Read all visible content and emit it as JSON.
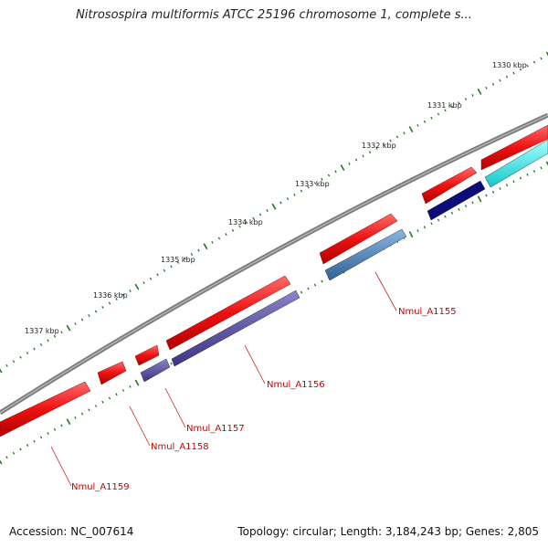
{
  "header": {
    "title": "Nitrosospira multiformis ATCC 25196 chromosome 1, complete s..."
  },
  "scale": {
    "ticks": [
      "1330 kbp",
      "1331 kbp",
      "1332 kbp",
      "1333 kbp",
      "1334 kbp",
      "1335 kbp",
      "1336 kbp",
      "1337 kbp"
    ]
  },
  "features": {
    "gene_labels": [
      "Nmul_A1155",
      "Nmul_A1156",
      "Nmul_A1157",
      "Nmul_A1158",
      "Nmul_A1159"
    ]
  },
  "colors": {
    "backbone": "#7d7d7d",
    "forward_cds": "#ee1111",
    "reverse_cds_dark": "#0d0d7a",
    "reverse_cds_steel": "#4a7fb5",
    "reverse_cds_slate": "#4e4796",
    "reverse_cds_cyan": "#22dddd",
    "tick": "#1e7a1e",
    "label": "#cc0000"
  },
  "footer": {
    "accession": "Accession: NC_007614",
    "stats": "Topology: circular; Length: 3,184,243 bp; Genes: 2,805"
  }
}
